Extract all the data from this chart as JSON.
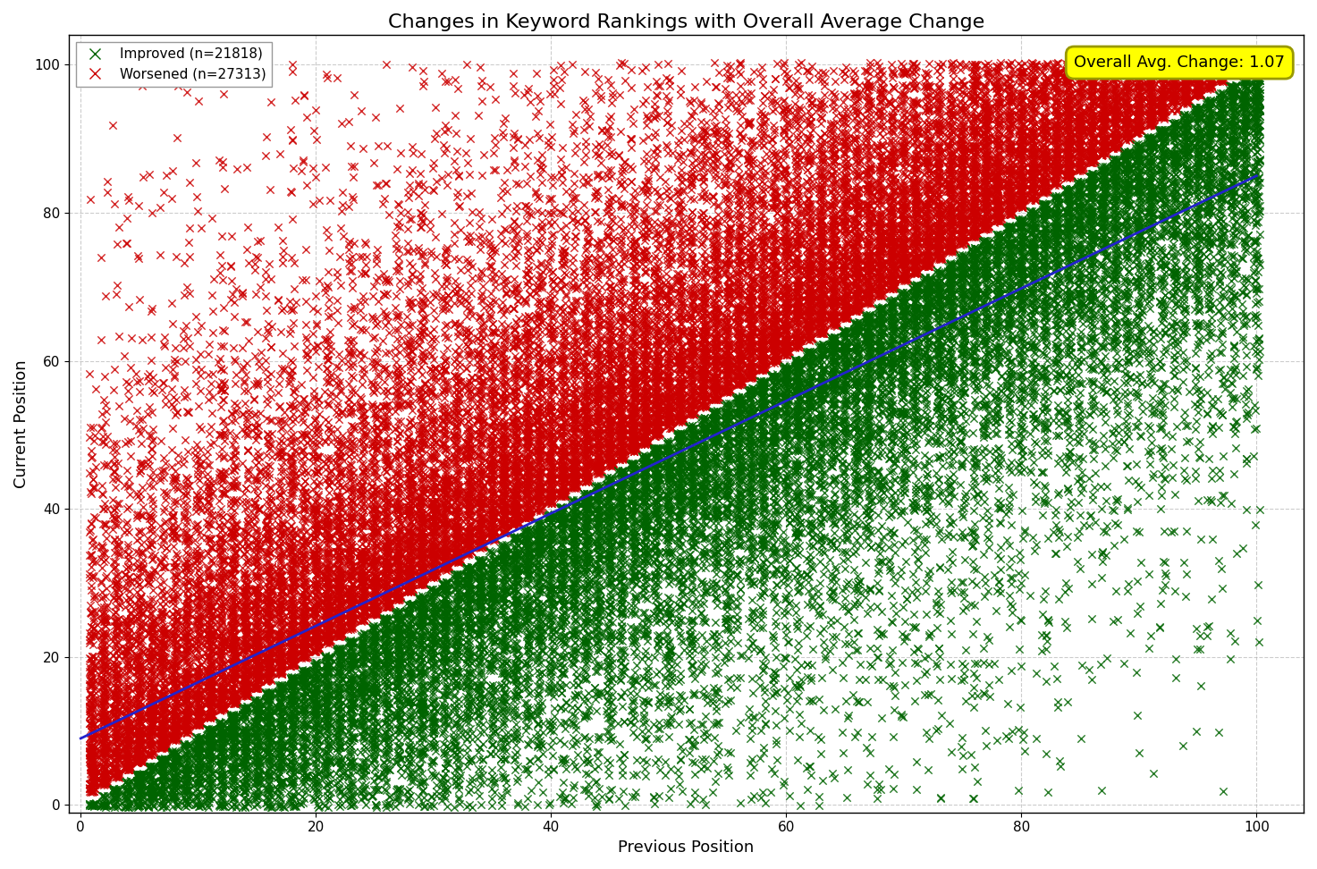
{
  "title": "Changes in Keyword Rankings with Overall Average Change",
  "xlabel": "Previous Position",
  "ylabel": "Current Position",
  "improved_n": 21818,
  "worsened_n": 27313,
  "avg_change": 1.07,
  "x_min": -1,
  "x_max": 104,
  "y_min": -1,
  "y_max": 104,
  "x_ticks": [
    0,
    20,
    40,
    60,
    80,
    100
  ],
  "y_ticks": [
    0,
    20,
    40,
    60,
    80,
    100
  ],
  "improved_color": "#006400",
  "worsened_color": "#cc0000",
  "line_color": "#2222cc",
  "background_color": "#ffffff",
  "annotation_bg_color": "#ffff00",
  "annotation_text_color": "#000000",
  "seed": 42,
  "title_fontsize": 16,
  "axis_label_fontsize": 13,
  "tick_fontsize": 11,
  "legend_fontsize": 11,
  "grid_color": "#aaaaaa",
  "grid_linestyle": "--",
  "grid_alpha": 0.6,
  "marker_size": 36,
  "marker_lw": 1.0,
  "marker_alpha": 0.85,
  "line_width": 2.0,
  "line_x0": 0,
  "line_y0": 9,
  "line_x1": 100,
  "line_y1": 85
}
